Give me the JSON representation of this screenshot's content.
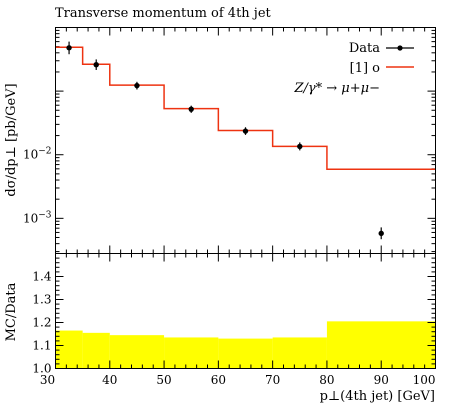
{
  "chart_data": {
    "type": "line",
    "title": "Transverse momentum of 4th jet",
    "xlabel": "p⊥(4th jet) [GeV]",
    "xlim": [
      30,
      100
    ],
    "x_ticks": [
      "30",
      "40",
      "50",
      "60",
      "70",
      "80",
      "90",
      "100"
    ],
    "main": {
      "ylabel": "dσ/dp⊥ [pb/GeV]",
      "yscale": "log",
      "ylim": [
        0.00028,
        1.0
      ],
      "y_ticks": [
        {
          "value": 0.01,
          "base": "10",
          "exp": "−2"
        },
        {
          "value": 0.001,
          "base": "10",
          "exp": "−3"
        }
      ],
      "legend_position": "top-right",
      "legend_note": "Z/γ* → μ+μ−",
      "data": {
        "name": "Data",
        "color": "#000000",
        "points": [
          {
            "x": 32.5,
            "y": 0.48,
            "ylo": 0.38,
            "yhi": 0.6
          },
          {
            "x": 37.5,
            "y": 0.26,
            "ylo": 0.215,
            "yhi": 0.315
          },
          {
            "x": 45.0,
            "y": 0.122,
            "ylo": 0.106,
            "yhi": 0.14
          },
          {
            "x": 55.0,
            "y": 0.052,
            "ylo": 0.0455,
            "yhi": 0.059
          },
          {
            "x": 65.0,
            "y": 0.0235,
            "ylo": 0.0205,
            "yhi": 0.027
          },
          {
            "x": 75.0,
            "y": 0.0135,
            "ylo": 0.0117,
            "yhi": 0.0156
          },
          {
            "x": 90.0,
            "y": 0.00058,
            "ylo": 0.00047,
            "yhi": 0.00072
          }
        ]
      },
      "mc": {
        "name": "[1] o",
        "color": "#ee3311",
        "bins": [
          {
            "lo": 30,
            "hi": 35,
            "y": 0.49
          },
          {
            "lo": 35,
            "hi": 40,
            "y": 0.265
          },
          {
            "lo": 40,
            "hi": 50,
            "y": 0.124
          },
          {
            "lo": 50,
            "hi": 60,
            "y": 0.053
          },
          {
            "lo": 60,
            "hi": 70,
            "y": 0.024
          },
          {
            "lo": 70,
            "hi": 80,
            "y": 0.0135
          },
          {
            "lo": 80,
            "hi": 100,
            "y": 0.0059
          }
        ]
      }
    },
    "ratio": {
      "ylabel": "MC/Data",
      "ylim": [
        1.0,
        1.5
      ],
      "y_ticks": [
        "1.0",
        "1.1",
        "1.2",
        "1.3",
        "1.4"
      ],
      "band_color": "#ffff00",
      "band": [
        {
          "lo": 30,
          "hi": 35,
          "y": 1.165
        },
        {
          "lo": 35,
          "hi": 40,
          "y": 1.155
        },
        {
          "lo": 40,
          "hi": 50,
          "y": 1.145
        },
        {
          "lo": 50,
          "hi": 60,
          "y": 1.135
        },
        {
          "lo": 60,
          "hi": 70,
          "y": 1.13
        },
        {
          "lo": 70,
          "hi": 80,
          "y": 1.135
        },
        {
          "lo": 80,
          "hi": 100,
          "y": 1.205
        }
      ]
    }
  }
}
